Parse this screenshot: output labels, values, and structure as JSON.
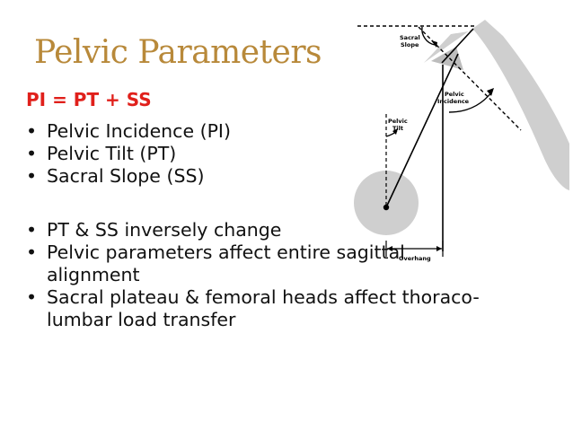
{
  "slide": {
    "title": "Pelvic Parameters",
    "formula": "PI = PT + SS",
    "bullets": [
      "Pelvic Incidence (PI)",
      "Pelvic Tilt (PT)",
      "Sacral Slope (SS)",
      "PT & SS inversely change",
      "Pelvic parameters affect entire sagittal alignment",
      "Sacral plateau & femoral heads affect thoraco-lumbar load transfer"
    ]
  },
  "diagram": {
    "sacral_slope_line1": "Sacral",
    "sacral_slope_line2": "Slope",
    "pelvic_incidence_line1": "Pelvic",
    "pelvic_incidence_line2": "Incidence",
    "pelvic_tilt_line1": "Pelvic",
    "pelvic_tilt_line2": "Tilt",
    "overhang": "Overhang"
  },
  "colors": {
    "title": "#b8893a",
    "formula": "#e0201b",
    "shape_gray": "#cfcfcf"
  }
}
